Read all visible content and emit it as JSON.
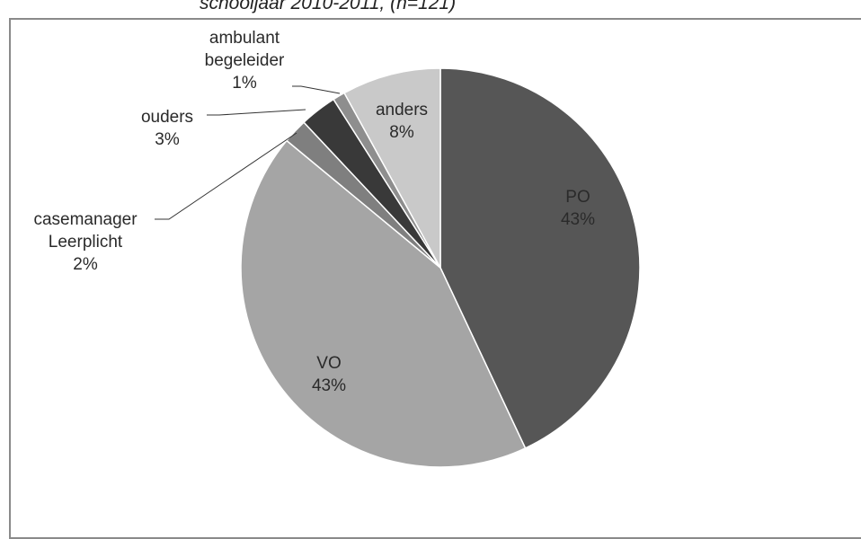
{
  "chart_data": {
    "type": "pie",
    "title": "schooljaar 2010-2011, (n=121)",
    "categories": [
      "PO",
      "VO",
      "casemanager Leerplicht",
      "ouders",
      "ambulant begeleider",
      "anders"
    ],
    "values": [
      43,
      43,
      2,
      3,
      1,
      8
    ],
    "value_labels": [
      "43%",
      "43%",
      "2%",
      "3%",
      "1%",
      "8%"
    ],
    "colors": [
      "#565656",
      "#a5a5a5",
      "#7f7f7f",
      "#393939",
      "#8e8e8e",
      "#c9c9c9"
    ]
  }
}
